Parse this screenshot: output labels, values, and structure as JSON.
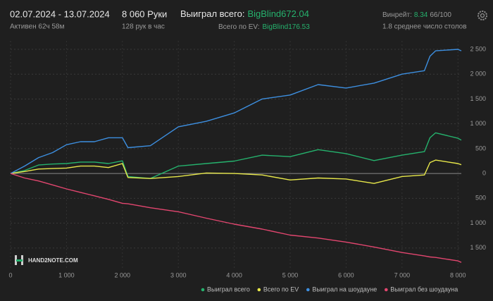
{
  "header": {
    "dates": "02.07.2024 - 13.07.2024",
    "active": "Активен 62ч 58м",
    "hands": "8 060 Руки",
    "rate": "128 рук в час",
    "won_label": "Выиграл всего:",
    "won_value": "BigBlind672.04",
    "ev_label": "Всего по EV:",
    "ev_value": "BigBlind176.53",
    "winrate_label": "Винрейт:",
    "winrate_value": "8.34",
    "winrate_extra": "66/100",
    "tables": "1.8 среднее число столов"
  },
  "chart_data": {
    "type": "line",
    "watermark": "HAND2NOTE.COM",
    "grid": true,
    "legend": "bottom-right",
    "x": [
      0,
      250,
      500,
      750,
      1000,
      1250,
      1500,
      1750,
      2000,
      2100,
      2500,
      3000,
      3500,
      4000,
      4500,
      5000,
      5500,
      6000,
      6500,
      7000,
      7400,
      7500,
      7600,
      8000,
      8060
    ],
    "series": [
      {
        "name": "Выиграл всего",
        "color": "#25b26d",
        "values": [
          0,
          60,
          170,
          190,
          200,
          230,
          230,
          200,
          255,
          -60,
          -100,
          150,
          200,
          250,
          370,
          340,
          480,
          400,
          260,
          370,
          440,
          720,
          820,
          710,
          672.04
        ]
      },
      {
        "name": "Всего по EV",
        "color": "#e8e84a",
        "values": [
          0,
          40,
          90,
          100,
          110,
          150,
          150,
          120,
          200,
          -80,
          -100,
          -60,
          10,
          0,
          -30,
          -130,
          -90,
          -110,
          -200,
          -60,
          -30,
          220,
          270,
          200,
          176.53
        ]
      },
      {
        "name": "Выиграл на шоудауне",
        "color": "#3d8fe0",
        "values": [
          0,
          150,
          320,
          420,
          580,
          640,
          640,
          720,
          720,
          520,
          560,
          940,
          1050,
          1220,
          1500,
          1580,
          1790,
          1720,
          1820,
          2000,
          2070,
          2360,
          2470,
          2500,
          2470
        ]
      },
      {
        "name": "Выиграл без шоудауна",
        "color": "#e2466f",
        "values": [
          0,
          -90,
          -150,
          -230,
          -310,
          -380,
          -450,
          -520,
          -600,
          -610,
          -690,
          -770,
          -900,
          -1020,
          -1120,
          -1240,
          -1300,
          -1380,
          -1480,
          -1590,
          -1660,
          -1680,
          -1690,
          -1760,
          -1790
        ]
      }
    ],
    "xlim": [
      0,
      8060
    ],
    "xticks": [
      0,
      {
        "value": 1000,
        "label": "1 000"
      },
      {
        "value": 2000,
        "label": "2 000"
      },
      {
        "value": 3000,
        "label": "3 000"
      },
      {
        "value": 4000,
        "label": "4 000"
      },
      {
        "value": 5000,
        "label": "5 000"
      },
      {
        "value": 6000,
        "label": "6 000"
      },
      {
        "value": 7000,
        "label": "7 000"
      },
      {
        "value": 8000,
        "label": "8 000"
      }
    ],
    "ylim": [
      -1900,
      2670
    ],
    "yticks": [
      {
        "value": -1500,
        "label": "1 500"
      },
      {
        "value": -1000,
        "label": "1 000"
      },
      {
        "value": -500,
        "label": "500"
      },
      0,
      500,
      {
        "value": 1000,
        "label": "1 000"
      },
      {
        "value": 1500,
        "label": "1 500"
      },
      {
        "value": 2000,
        "label": "2 000"
      },
      {
        "value": 2500,
        "label": "2 500"
      }
    ]
  }
}
